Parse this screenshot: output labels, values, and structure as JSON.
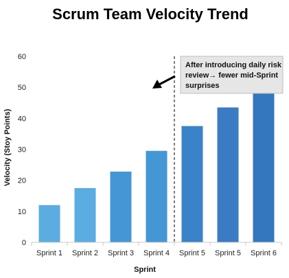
{
  "chart_data": {
    "type": "bar",
    "title": "Scrum Team Velocity Trend",
    "xlabel": "Sprint",
    "ylabel": "Velocity (Stoy Points)",
    "ylim": [
      0,
      60
    ],
    "yticks": [
      0,
      10,
      20,
      30,
      40,
      50,
      60
    ],
    "categories": [
      "Sprint 1",
      "Sprint 2",
      "Sprint 3",
      "Sprint 4",
      "Sprint 5",
      "Sprint 5",
      "Sprint 6"
    ],
    "values": [
      12,
      17.5,
      22.8,
      29.5,
      37.5,
      43.5,
      49.3
    ],
    "bar_colors": [
      "#5aace1",
      "#5aace1",
      "#4596d5",
      "#4596d5",
      "#3a83c9",
      "#3a7bc3",
      "#3577bf"
    ],
    "grid": false,
    "annotation": {
      "lines": [
        "After introducing daily risk",
        "review→ fewer mid-Sprint",
        "surprises"
      ],
      "marker": "dashed vertical line between Sprint 4 and Sprint 5",
      "arrow": "points left toward earlier sprints"
    }
  }
}
